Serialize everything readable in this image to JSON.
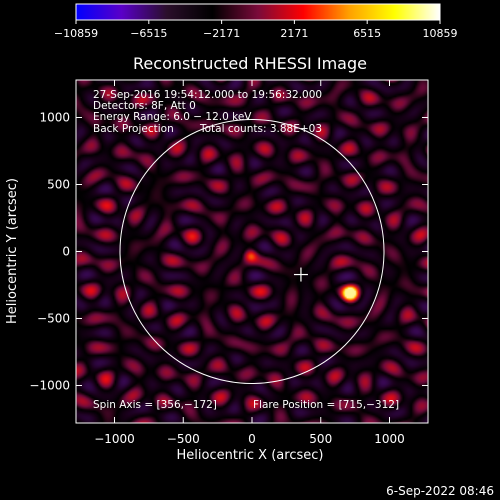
{
  "chart_data": {
    "type": "heatmap",
    "title": "Reconstructed RHESSI Image",
    "xlabel": "Heliocentric X (arcsec)",
    "ylabel": "Heliocentric Y (arcsec)",
    "xlim": [
      -1280,
      1280
    ],
    "ylim": [
      -1280,
      1280
    ],
    "x_ticks": [
      -1000,
      -500,
      0,
      500,
      1000
    ],
    "y_ticks": [
      -1000,
      -500,
      0,
      500,
      1000
    ],
    "x_tick_labels": [
      "−1000",
      "−500",
      "0",
      "500",
      "1000"
    ],
    "y_tick_labels": [
      "−1000",
      "−500",
      "0",
      "500",
      "1000"
    ],
    "colorbar": {
      "range": [
        -10859,
        10859
      ],
      "ticks": [
        -10859,
        -6515,
        -2171,
        2171,
        6515,
        10859
      ],
      "tick_labels": [
        "−10859",
        "−6515",
        "−2171",
        "2171",
        "6515",
        "10859"
      ],
      "colors": [
        "#0000ff",
        "#5a00c8",
        "#2a0e2a",
        "#000000",
        "#7a0a3a",
        "#ff0000",
        "#ffa000",
        "#ffff00",
        "#ffffff"
      ]
    },
    "annotations": {
      "line1": "27-Sep-2016 19:54:12.000 to 19:56:32.000",
      "line2": "Detectors: 8F, Att 0",
      "line3": "Energy Range: 6.0 − 12.0 keV",
      "line4a": "Back Projection",
      "line4b": "Total counts: 3.88E+03",
      "spin_axis": "Spin Axis = [356,−172]",
      "flare_position": "Flare Position = [715,−312]"
    },
    "solar_limb_radius": 960,
    "spin_axis_point": [
      356,
      -172
    ],
    "flare_source": [
      715,
      -312
    ],
    "secondary_source": [
      -10,
      -30
    ]
  },
  "footer_date": "6-Sep-2022 08:46"
}
